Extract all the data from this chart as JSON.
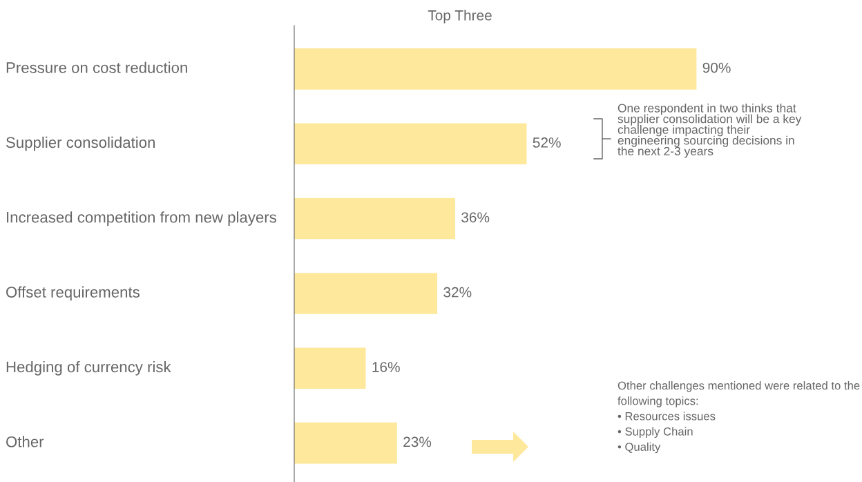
{
  "chart_data": {
    "type": "bar",
    "orientation": "horizontal",
    "title": "Top Three",
    "categories": [
      "Pressure on cost reduction",
      "Supplier consolidation",
      "Increased competition from new players",
      "Offset requirements",
      "Hedging of currency risk",
      "Other"
    ],
    "values": [
      90,
      52,
      36,
      32,
      16,
      23
    ],
    "value_labels": [
      "90%",
      "52%",
      "36%",
      "32%",
      "16%",
      "23%"
    ],
    "color": "#fde89c",
    "annotations": [
      "One respondent in two thinks that\nsupplier consolidation will be a key\nchallenge impacting their\nengineering sourcing decisions in\nthe next 2-3 years",
      "Other challenges mentioned were related to the\nfollowing topics:\n• Resources issues\n• Supply Chain\n• Quality"
    ]
  }
}
